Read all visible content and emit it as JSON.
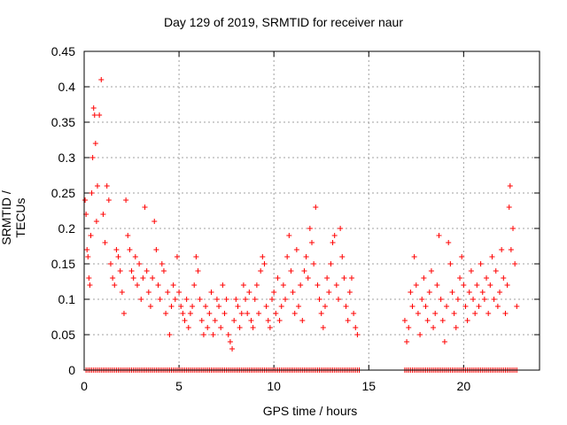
{
  "chart_data": {
    "type": "scatter",
    "title": "Day 129 of 2019, SRMTID for receiver naur",
    "xlabel": "GPS time / hours",
    "ylabel": "SRMTID / TECUs",
    "xlim": [
      0,
      24
    ],
    "ylim": [
      0,
      0.45
    ],
    "xticks": [
      0,
      5,
      10,
      15,
      20
    ],
    "yticks": [
      0,
      0.05,
      0.1,
      0.15,
      0.2,
      0.25,
      0.3,
      0.35,
      0.4,
      0.45
    ],
    "ytick_labels": [
      "0",
      "0.05",
      "0.1",
      "0.15",
      "0.2",
      "0.25",
      "0.3",
      "0.35",
      "0.4",
      "0.45"
    ],
    "grid": true,
    "marker": "+",
    "color": "#ff0000",
    "data_gap_hours": [
      14.6,
      16.8
    ],
    "series": [
      {
        "name": "SRMTID",
        "points": [
          [
            0.05,
            0.24
          ],
          [
            0.1,
            0.22
          ],
          [
            0.15,
            0.17
          ],
          [
            0.2,
            0.16
          ],
          [
            0.25,
            0.13
          ],
          [
            0.3,
            0.12
          ],
          [
            0.35,
            0.19
          ],
          [
            0.4,
            0.25
          ],
          [
            0.45,
            0.3
          ],
          [
            0.5,
            0.37
          ],
          [
            0.55,
            0.36
          ],
          [
            0.6,
            0.32
          ],
          [
            0.65,
            0.21
          ],
          [
            0.7,
            0.26
          ],
          [
            0.8,
            0.36
          ],
          [
            0.9,
            0.41
          ],
          [
            1.0,
            0.22
          ],
          [
            1.1,
            0.18
          ],
          [
            1.2,
            0.26
          ],
          [
            1.3,
            0.24
          ],
          [
            1.4,
            0.15
          ],
          [
            1.5,
            0.13
          ],
          [
            1.6,
            0.12
          ],
          [
            1.7,
            0.17
          ],
          [
            1.8,
            0.16
          ],
          [
            1.9,
            0.14
          ],
          [
            2.0,
            0.11
          ],
          [
            2.1,
            0.08
          ],
          [
            2.2,
            0.24
          ],
          [
            2.3,
            0.19
          ],
          [
            2.4,
            0.17
          ],
          [
            2.5,
            0.14
          ],
          [
            2.6,
            0.13
          ],
          [
            2.7,
            0.16
          ],
          [
            2.8,
            0.12
          ],
          [
            2.9,
            0.15
          ],
          [
            3.0,
            0.1
          ],
          [
            3.1,
            0.13
          ],
          [
            3.2,
            0.23
          ],
          [
            3.3,
            0.14
          ],
          [
            3.4,
            0.11
          ],
          [
            3.5,
            0.09
          ],
          [
            3.6,
            0.13
          ],
          [
            3.7,
            0.21
          ],
          [
            3.8,
            0.17
          ],
          [
            3.9,
            0.12
          ],
          [
            4.0,
            0.1
          ],
          [
            4.1,
            0.15
          ],
          [
            4.2,
            0.14
          ],
          [
            4.3,
            0.08
          ],
          [
            4.4,
            0.11
          ],
          [
            4.5,
            0.05
          ],
          [
            4.6,
            0.09
          ],
          [
            4.7,
            0.12
          ],
          [
            4.8,
            0.1
          ],
          [
            4.9,
            0.16
          ],
          [
            5.0,
            0.11
          ],
          [
            5.1,
            0.09
          ],
          [
            5.2,
            0.08
          ],
          [
            5.3,
            0.07
          ],
          [
            5.4,
            0.1
          ],
          [
            5.5,
            0.06
          ],
          [
            5.6,
            0.08
          ],
          [
            5.7,
            0.09
          ],
          [
            5.8,
            0.12
          ],
          [
            5.9,
            0.16
          ],
          [
            6.0,
            0.14
          ],
          [
            6.1,
            0.1
          ],
          [
            6.2,
            0.07
          ],
          [
            6.3,
            0.05
          ],
          [
            6.4,
            0.09
          ],
          [
            6.5,
            0.06
          ],
          [
            6.6,
            0.08
          ],
          [
            6.7,
            0.11
          ],
          [
            6.8,
            0.05
          ],
          [
            6.9,
            0.07
          ],
          [
            7.0,
            0.1
          ],
          [
            7.1,
            0.09
          ],
          [
            7.2,
            0.06
          ],
          [
            7.3,
            0.12
          ],
          [
            7.4,
            0.08
          ],
          [
            7.5,
            0.1
          ],
          [
            7.6,
            0.05
          ],
          [
            7.7,
            0.04
          ],
          [
            7.8,
            0.03
          ],
          [
            7.9,
            0.07
          ],
          [
            8.0,
            0.1
          ],
          [
            8.1,
            0.09
          ],
          [
            8.2,
            0.06
          ],
          [
            8.3,
            0.08
          ],
          [
            8.4,
            0.12
          ],
          [
            8.5,
            0.1
          ],
          [
            8.6,
            0.08
          ],
          [
            8.7,
            0.11
          ],
          [
            8.8,
            0.07
          ],
          [
            8.9,
            0.06
          ],
          [
            9.0,
            0.1
          ],
          [
            9.1,
            0.12
          ],
          [
            9.2,
            0.08
          ],
          [
            9.3,
            0.14
          ],
          [
            9.4,
            0.16
          ],
          [
            9.5,
            0.15
          ],
          [
            9.6,
            0.09
          ],
          [
            9.7,
            0.07
          ],
          [
            9.8,
            0.06
          ],
          [
            9.9,
            0.1
          ],
          [
            10.0,
            0.11
          ],
          [
            10.1,
            0.08
          ],
          [
            10.2,
            0.13
          ],
          [
            10.3,
            0.07
          ],
          [
            10.4,
            0.09
          ],
          [
            10.5,
            0.12
          ],
          [
            10.6,
            0.1
          ],
          [
            10.7,
            0.16
          ],
          [
            10.8,
            0.19
          ],
          [
            10.9,
            0.14
          ],
          [
            11.0,
            0.11
          ],
          [
            11.1,
            0.08
          ],
          [
            11.2,
            0.17
          ],
          [
            11.3,
            0.09
          ],
          [
            11.4,
            0.12
          ],
          [
            11.5,
            0.07
          ],
          [
            11.6,
            0.14
          ],
          [
            11.7,
            0.16
          ],
          [
            11.8,
            0.13
          ],
          [
            11.9,
            0.2
          ],
          [
            12.0,
            0.18
          ],
          [
            12.1,
            0.15
          ],
          [
            12.2,
            0.23
          ],
          [
            12.3,
            0.12
          ],
          [
            12.4,
            0.1
          ],
          [
            12.5,
            0.08
          ],
          [
            12.6,
            0.06
          ],
          [
            12.7,
            0.09
          ],
          [
            12.8,
            0.13
          ],
          [
            12.9,
            0.11
          ],
          [
            13.0,
            0.15
          ],
          [
            13.1,
            0.18
          ],
          [
            13.2,
            0.19
          ],
          [
            13.3,
            0.12
          ],
          [
            13.4,
            0.1
          ],
          [
            13.5,
            0.2
          ],
          [
            13.6,
            0.16
          ],
          [
            13.7,
            0.13
          ],
          [
            13.8,
            0.09
          ],
          [
            13.9,
            0.07
          ],
          [
            14.0,
            0.11
          ],
          [
            14.1,
            0.13
          ],
          [
            14.2,
            0.08
          ],
          [
            14.3,
            0.06
          ],
          [
            14.4,
            0.05
          ],
          [
            16.9,
            0.07
          ],
          [
            17.0,
            0.04
          ],
          [
            17.1,
            0.06
          ],
          [
            17.2,
            0.11
          ],
          [
            17.3,
            0.09
          ],
          [
            17.4,
            0.16
          ],
          [
            17.5,
            0.12
          ],
          [
            17.6,
            0.08
          ],
          [
            17.7,
            0.05
          ],
          [
            17.8,
            0.1
          ],
          [
            17.9,
            0.13
          ],
          [
            18.0,
            0.09
          ],
          [
            18.1,
            0.07
          ],
          [
            18.2,
            0.11
          ],
          [
            18.3,
            0.14
          ],
          [
            18.4,
            0.06
          ],
          [
            18.5,
            0.08
          ],
          [
            18.6,
            0.12
          ],
          [
            18.7,
            0.19
          ],
          [
            18.8,
            0.1
          ],
          [
            18.9,
            0.07
          ],
          [
            19.0,
            0.04
          ],
          [
            19.1,
            0.09
          ],
          [
            19.2,
            0.18
          ],
          [
            19.3,
            0.15
          ],
          [
            19.4,
            0.11
          ],
          [
            19.5,
            0.08
          ],
          [
            19.6,
            0.06
          ],
          [
            19.7,
            0.1
          ],
          [
            19.8,
            0.13
          ],
          [
            19.9,
            0.16
          ],
          [
            20.0,
            0.12
          ],
          [
            20.1,
            0.09
          ],
          [
            20.2,
            0.07
          ],
          [
            20.3,
            0.11
          ],
          [
            20.4,
            0.14
          ],
          [
            20.5,
            0.1
          ],
          [
            20.6,
            0.08
          ],
          [
            20.7,
            0.12
          ],
          [
            20.8,
            0.09
          ],
          [
            20.9,
            0.15
          ],
          [
            21.0,
            0.11
          ],
          [
            21.1,
            0.1
          ],
          [
            21.2,
            0.13
          ],
          [
            21.3,
            0.08
          ],
          [
            21.4,
            0.12
          ],
          [
            21.5,
            0.16
          ],
          [
            21.6,
            0.1
          ],
          [
            21.7,
            0.14
          ],
          [
            21.8,
            0.09
          ],
          [
            21.9,
            0.11
          ],
          [
            22.0,
            0.17
          ],
          [
            22.1,
            0.13
          ],
          [
            22.2,
            0.08
          ],
          [
            22.3,
            0.12
          ],
          [
            22.4,
            0.23
          ],
          [
            22.45,
            0.26
          ],
          [
            22.5,
            0.17
          ],
          [
            22.6,
            0.2
          ],
          [
            22.7,
            0.15
          ],
          [
            22.8,
            0.09
          ]
        ]
      },
      {
        "name": "zero-valued samples",
        "segments_hours": [
          [
            0.1,
            14.5
          ],
          [
            16.9,
            22.8
          ]
        ],
        "value": 0
      }
    ]
  }
}
